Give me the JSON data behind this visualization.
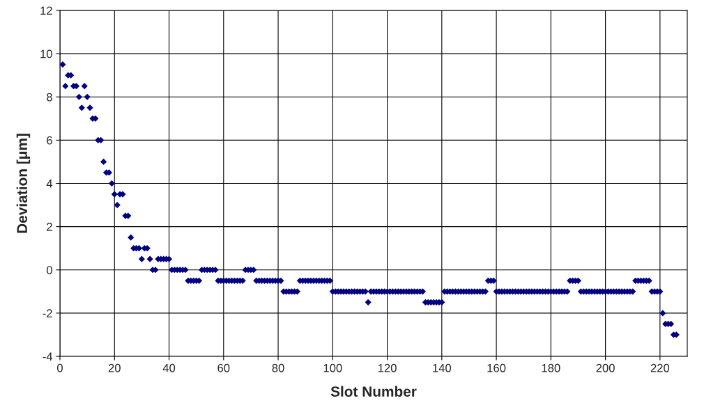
{
  "chart_data": {
    "type": "scatter",
    "xlabel": "Slot Number",
    "ylabel": "Deviation [μm]",
    "xlim": [
      0,
      230
    ],
    "xticks": [
      0,
      20,
      40,
      60,
      80,
      100,
      120,
      140,
      160,
      180,
      200,
      220
    ],
    "ylim": [
      -4,
      12
    ],
    "yticks": [
      -4,
      -2,
      0,
      2,
      4,
      6,
      8,
      10,
      12
    ],
    "grid": true,
    "marker": "diamond",
    "legend": false,
    "series": [
      {
        "color": "#000080",
        "x": [
          1,
          2,
          3,
          4,
          5,
          6,
          7,
          8,
          9,
          10,
          11,
          12,
          13,
          14,
          15,
          16,
          17,
          18,
          19,
          20,
          21,
          22,
          23,
          24,
          25,
          26,
          27,
          28,
          29,
          30,
          31,
          32,
          33,
          34,
          35,
          36,
          37,
          38,
          39,
          40,
          41,
          42,
          43,
          44,
          45,
          46,
          47,
          48,
          49,
          50,
          51,
          52,
          53,
          54,
          55,
          56,
          57,
          58,
          59,
          60,
          61,
          62,
          63,
          64,
          65,
          66,
          67,
          68,
          69,
          70,
          71,
          72,
          73,
          74,
          75,
          76,
          77,
          78,
          79,
          80,
          81,
          82,
          83,
          84,
          85,
          86,
          87,
          88,
          89,
          90,
          91,
          92,
          93,
          94,
          95,
          96,
          97,
          98,
          99,
          100,
          101,
          102,
          103,
          104,
          105,
          106,
          107,
          108,
          109,
          110,
          111,
          112,
          113,
          114,
          115,
          116,
          117,
          118,
          119,
          120,
          121,
          122,
          123,
          124,
          125,
          126,
          127,
          128,
          129,
          130,
          131,
          132,
          133,
          134,
          135,
          136,
          137,
          138,
          139,
          140,
          141,
          142,
          143,
          144,
          145,
          146,
          147,
          148,
          149,
          150,
          151,
          152,
          153,
          154,
          155,
          156,
          157,
          158,
          159,
          160,
          161,
          162,
          163,
          164,
          165,
          166,
          167,
          168,
          169,
          170,
          171,
          172,
          173,
          174,
          175,
          176,
          177,
          178,
          179,
          180,
          181,
          182,
          183,
          184,
          185,
          186,
          187,
          188,
          189,
          190,
          191,
          192,
          193,
          194,
          195,
          196,
          197,
          198,
          199,
          200,
          201,
          202,
          203,
          204,
          205,
          206,
          207,
          208,
          209,
          210,
          211,
          212,
          213,
          214,
          215,
          216,
          217,
          218,
          219,
          220,
          221,
          222,
          223,
          224,
          225,
          226
        ],
        "values": [
          9.5,
          8.5,
          9,
          9,
          8.5,
          8.5,
          8,
          7.5,
          8.5,
          8,
          7.5,
          7,
          7,
          6,
          6,
          5,
          4.5,
          4.5,
          4,
          3.5,
          3,
          3.5,
          3.5,
          2.5,
          2.5,
          1.5,
          1,
          1,
          1,
          0.5,
          1,
          1,
          0.5,
          0,
          0,
          0.5,
          0.5,
          0.5,
          0.5,
          0.5,
          0,
          0,
          0,
          0,
          0,
          0,
          -0.5,
          -0.5,
          -0.5,
          -0.5,
          -0.5,
          0,
          0,
          0,
          0,
          0,
          0,
          -0.5,
          -0.5,
          -0.5,
          -0.5,
          -0.5,
          -0.5,
          -0.5,
          -0.5,
          -0.5,
          -0.5,
          0,
          0,
          0,
          0,
          -0.5,
          -0.5,
          -0.5,
          -0.5,
          -0.5,
          -0.5,
          -0.5,
          -0.5,
          -0.5,
          -0.5,
          -1,
          -1,
          -1,
          -1,
          -1,
          -1,
          -0.5,
          -0.5,
          -0.5,
          -0.5,
          -0.5,
          -0.5,
          -0.5,
          -0.5,
          -0.5,
          -0.5,
          -0.5,
          -0.5,
          -1,
          -1,
          -1,
          -1,
          -1,
          -1,
          -1,
          -1,
          -1,
          -1,
          -1,
          -1,
          -1,
          -1.5,
          -1,
          -1,
          -1,
          -1,
          -1,
          -1,
          -1,
          -1,
          -1,
          -1,
          -1,
          -1,
          -1,
          -1,
          -1,
          -1,
          -1,
          -1,
          -1,
          -1,
          -1.5,
          -1.5,
          -1.5,
          -1.5,
          -1.5,
          -1.5,
          -1.5,
          -1,
          -1,
          -1,
          -1,
          -1,
          -1,
          -1,
          -1,
          -1,
          -1,
          -1,
          -1,
          -1,
          -1,
          -1,
          -1,
          -0.5,
          -0.5,
          -0.5,
          -1,
          -1,
          -1,
          -1,
          -1,
          -1,
          -1,
          -1,
          -1,
          -1,
          -1,
          -1,
          -1,
          -1,
          -1,
          -1,
          -1,
          -1,
          -1,
          -1,
          -1,
          -1,
          -1,
          -1,
          -1,
          -1,
          -1,
          -0.5,
          -0.5,
          -0.5,
          -0.5,
          -1,
          -1,
          -1,
          -1,
          -1,
          -1,
          -1,
          -1,
          -1,
          -1,
          -1,
          -1,
          -1,
          -1,
          -1,
          -1,
          -1,
          -1,
          -1,
          -1,
          -0.5,
          -0.5,
          -0.5,
          -0.5,
          -0.5,
          -0.5,
          -1,
          -1,
          -1,
          -1,
          -2,
          -2.5,
          -2.5,
          -2.5,
          -3,
          -3
        ]
      }
    ]
  }
}
